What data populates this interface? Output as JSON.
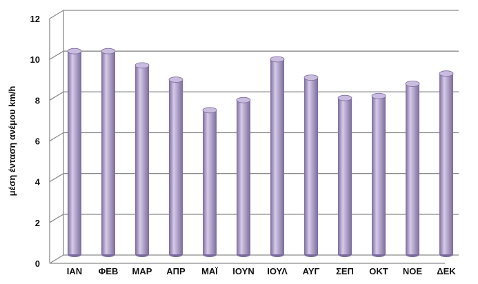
{
  "chart_data": {
    "type": "bar",
    "title": "",
    "xlabel": "",
    "ylabel": "μέση ένταση ανέμου km/h",
    "ylim": [
      0,
      12
    ],
    "yticks": [
      0,
      2,
      4,
      6,
      8,
      10,
      12
    ],
    "grid": true,
    "legend": "none",
    "categories": [
      "ΙΑΝ",
      "ΦΕΒ",
      "ΜΑΡ",
      "ΑΠΡ",
      "ΜΑΪ",
      "ΙΟΥΝ",
      "ΙΟΥΛ",
      "ΑΥΓ",
      "ΣΕΠ",
      "ΟΚΤ",
      "ΝΟΕ",
      "ΔΕΚ"
    ],
    "values": [
      10.0,
      10.0,
      9.3,
      8.6,
      7.1,
      7.6,
      9.6,
      8.7,
      7.7,
      7.8,
      8.4,
      8.9
    ],
    "colors": {
      "bar_body": "#a99bc6",
      "bar_highlight": "#d6cbe8",
      "bar_shadow": "#7a6a9c",
      "bar_top": "#c9bddf",
      "grid": "#8a8a8a",
      "text": "#111111"
    }
  }
}
